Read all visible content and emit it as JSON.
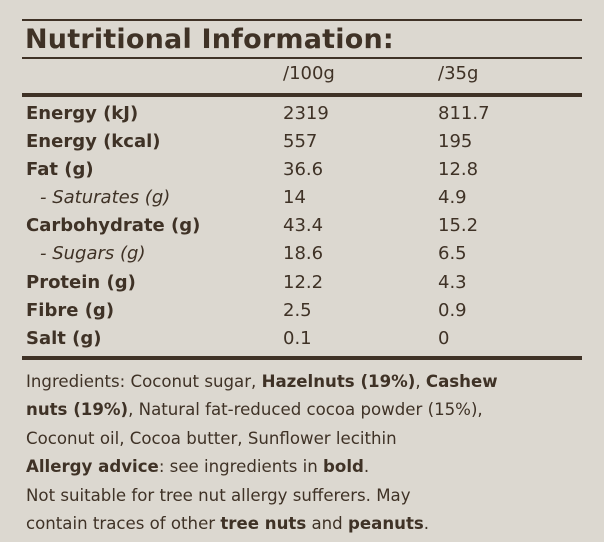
{
  "title": "Nutritional Information:",
  "columns": [
    "/100g",
    "/35g"
  ],
  "rows": [
    {
      "label": "Energy (kJ)",
      "per100": "2319",
      "per35": "811.7",
      "sub": false
    },
    {
      "label": "Energy (kcal)",
      "per100": "557",
      "per35": "195",
      "sub": false
    },
    {
      "label": "Fat (g)",
      "per100": "36.6",
      "per35": "12.8",
      "sub": false
    },
    {
      "label": "- Saturates (g)",
      "per100": "14",
      "per35": "4.9",
      "sub": true
    },
    {
      "label": "Carbohydrate (g)",
      "per100": "43.4",
      "per35": "15.2",
      "sub": false
    },
    {
      "label": "- Sugars (g)",
      "per100": "18.6",
      "per35": "6.5",
      "sub": true
    },
    {
      "label": "Protein (g)",
      "per100": "12.2",
      "per35": "4.3",
      "sub": false
    },
    {
      "label": "Fibre (g)",
      "per100": "2.5",
      "per35": "0.9",
      "sub": false
    },
    {
      "label": "Salt (g)",
      "per100": "0.1",
      "per35": "0",
      "sub": false
    }
  ],
  "ingredients": {
    "line1": {
      "a": "Ingredients: Coconut sugar, ",
      "b1": "Hazelnuts (19%)",
      "c": ", ",
      "b2": "Cashew"
    },
    "line2": {
      "b": "nuts (19%)",
      "c": ", Natural fat-reduced cocoa powder (15%),"
    },
    "line3": "Coconut oil, Cocoa butter, Sunflower lecithin",
    "line4": {
      "b1": "Allergy advice",
      "c": ": see ingredients in ",
      "b2": "bold",
      "d": "."
    },
    "line5": "Not suitable for tree nut allergy sufferers. May",
    "line6": {
      "a": "contain traces of other ",
      "b1": "tree nuts",
      "c": " and ",
      "b2": "peanuts",
      "d": "."
    }
  },
  "colors": {
    "background": "#dcd8d0",
    "text": "#3f3226"
  }
}
